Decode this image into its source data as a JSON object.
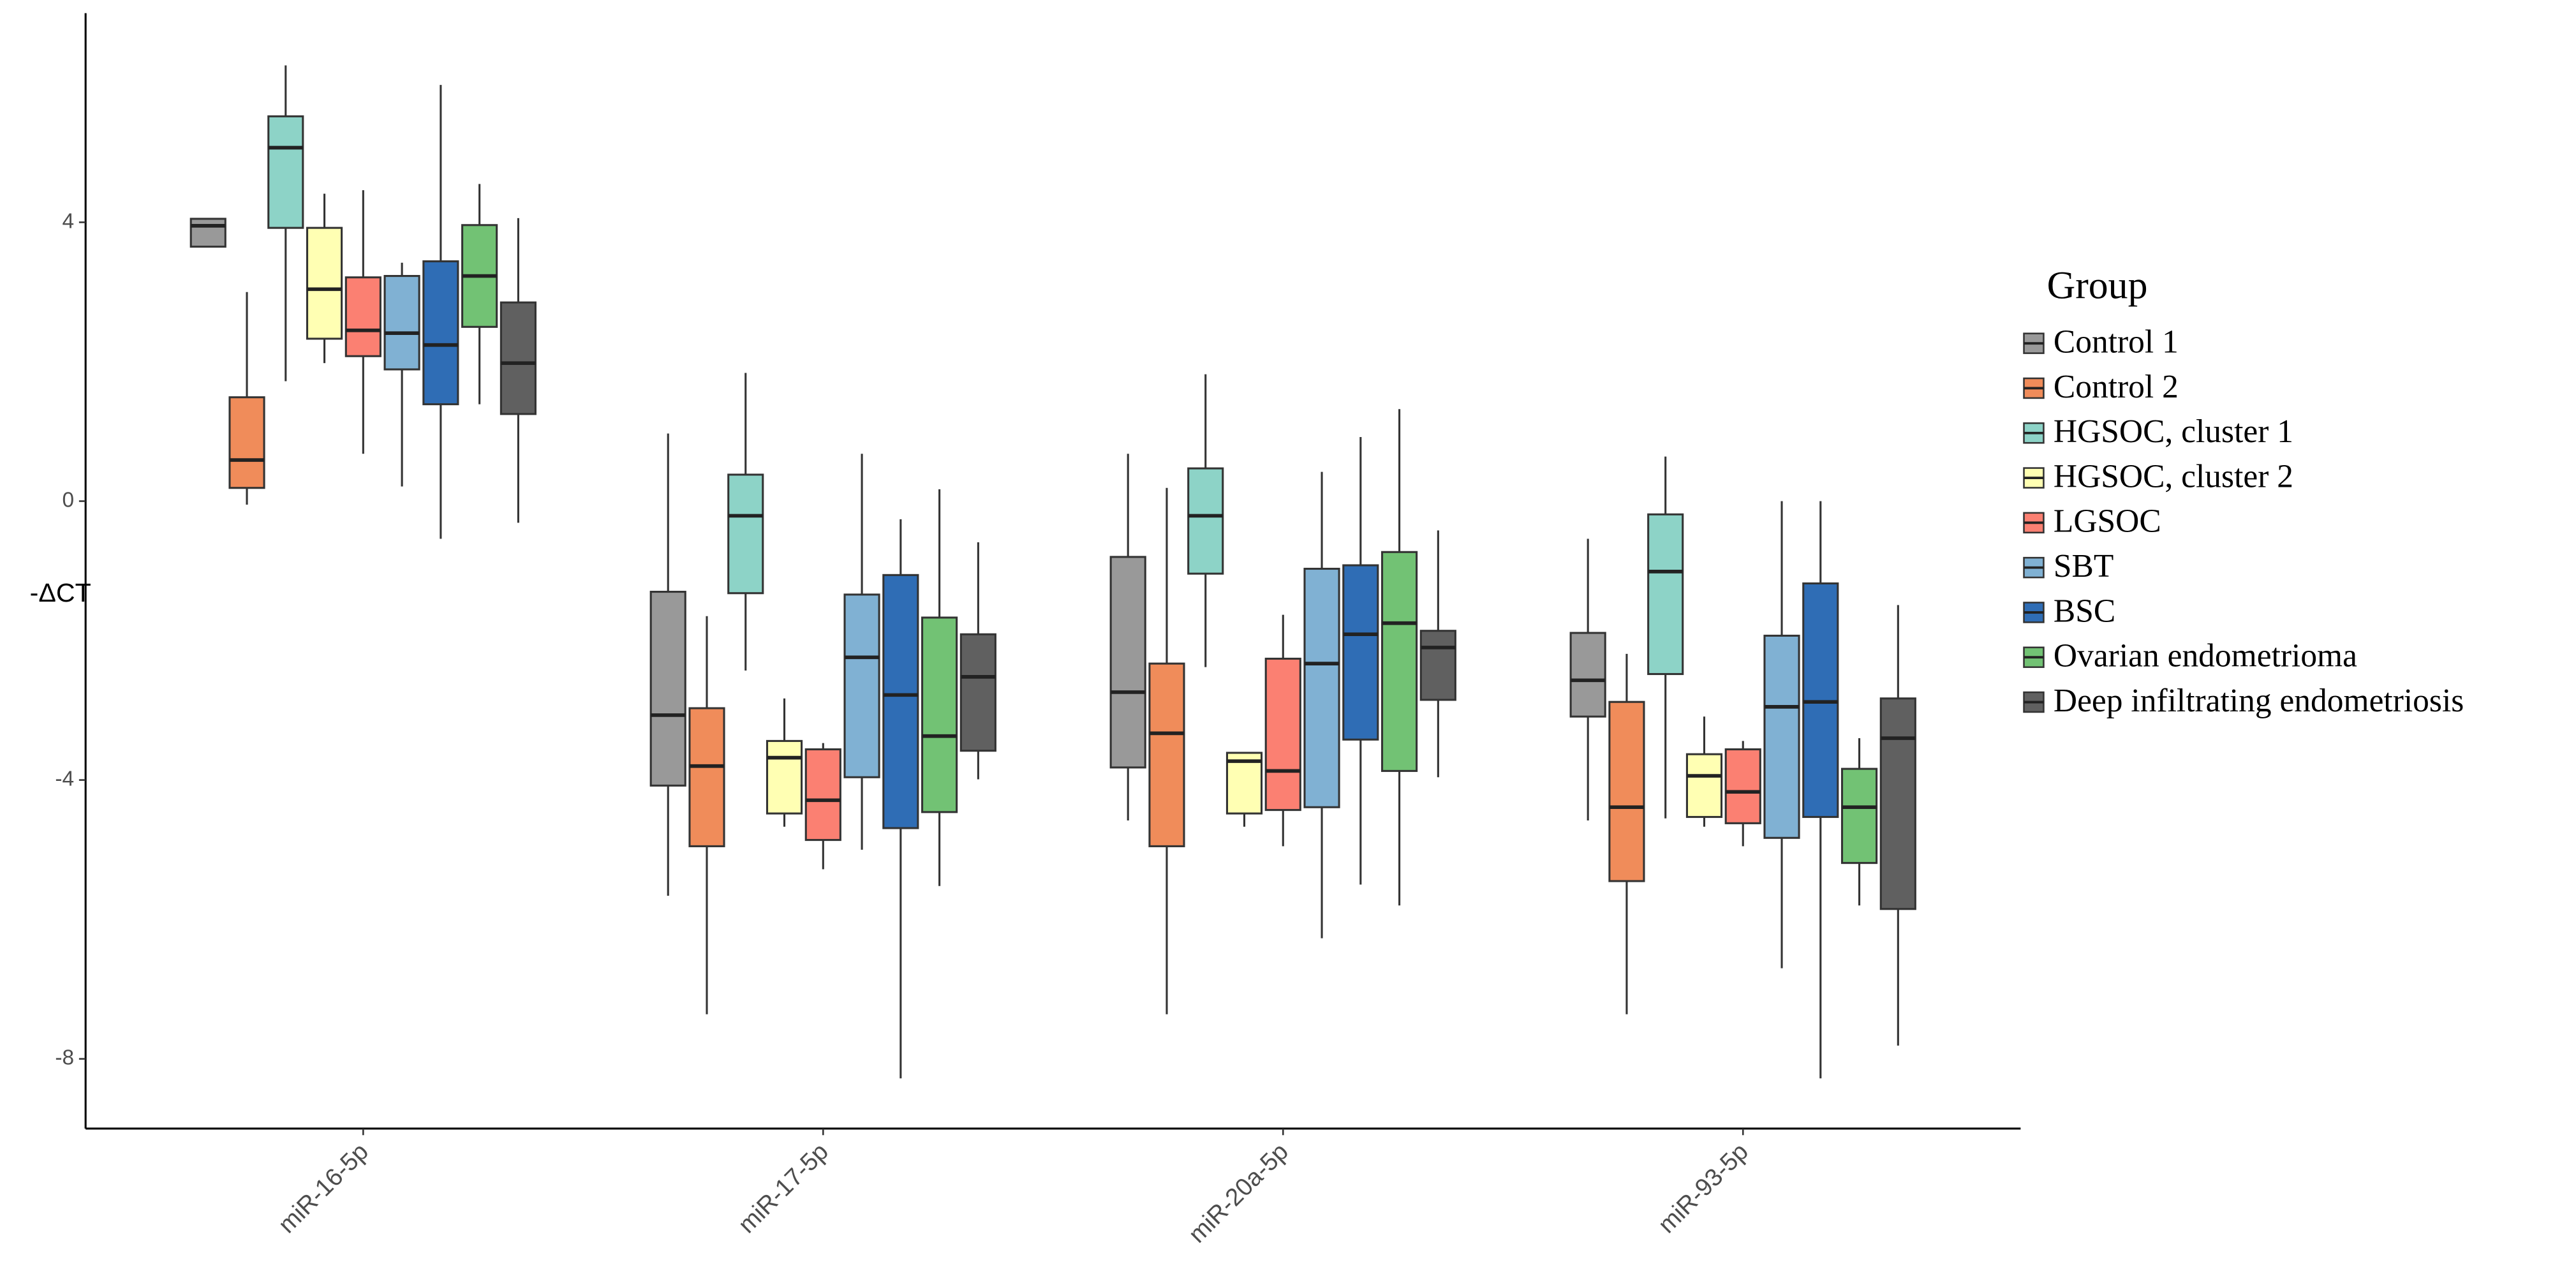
{
  "chart_data": {
    "type": "box",
    "y_label": "-ΔCT",
    "legend_title": "Group",
    "legend_position": "right",
    "categories": [
      "miR-16-5p",
      "miR-17-5p",
      "miR-20a-5p",
      "miR-93-5p"
    ],
    "ylim": [
      -9,
      7
    ],
    "yticks": [
      -8,
      -4,
      0,
      4
    ],
    "series": [
      {
        "name": "Control 1",
        "color": "#999999",
        "low": [
          3.65,
          -5.66,
          -4.58,
          -4.58
        ],
        "q1": [
          3.65,
          -4.08,
          -3.82,
          -3.09
        ],
        "median": [
          3.95,
          -3.07,
          -2.74,
          -2.57
        ],
        "q3": [
          4.05,
          -1.3,
          -0.8,
          -1.89
        ],
        "high": [
          4.05,
          0.97,
          0.68,
          -0.54
        ]
      },
      {
        "name": "Control 2",
        "color": "#f08c5a",
        "low": [
          -0.05,
          -7.36,
          -7.36,
          -7.36
        ],
        "q1": [
          0.19,
          -4.95,
          -4.95,
          -5.45
        ],
        "median": [
          0.59,
          -3.8,
          -3.33,
          -4.39
        ],
        "q3": [
          1.49,
          -2.97,
          -2.33,
          -2.88
        ],
        "high": [
          3.0,
          -1.65,
          0.19,
          -2.19
        ]
      },
      {
        "name": "HGSOC, cluster 1",
        "color": "#8dd3c7",
        "low": [
          1.72,
          -2.43,
          -2.38,
          -4.55
        ],
        "q1": [
          3.92,
          -1.32,
          -1.04,
          -2.48
        ],
        "median": [
          5.07,
          -0.21,
          -0.21,
          -1.01
        ],
        "q3": [
          5.52,
          0.38,
          0.47,
          -0.19
        ],
        "high": [
          6.25,
          1.84,
          1.82,
          0.64
        ]
      },
      {
        "name": "HGSOC, cluster 2",
        "color": "#ffffb3",
        "low": [
          1.98,
          -4.67,
          -4.67,
          -4.67
        ],
        "q1": [
          2.33,
          -4.48,
          -4.48,
          -4.53
        ],
        "median": [
          3.04,
          -3.68,
          -3.73,
          -3.94
        ],
        "q3": [
          3.92,
          -3.44,
          -3.61,
          -3.63
        ],
        "high": [
          4.41,
          -2.83,
          -3.61,
          -3.09
        ]
      },
      {
        "name": "LGSOC",
        "color": "#fb8072",
        "low": [
          0.68,
          -5.28,
          -4.95,
          -4.95
        ],
        "q1": [
          2.08,
          -4.86,
          -4.43,
          -4.62
        ],
        "median": [
          2.45,
          -4.29,
          -3.87,
          -4.17
        ],
        "q3": [
          3.21,
          -3.56,
          -2.26,
          -3.56
        ],
        "high": [
          4.46,
          -3.47,
          -1.63,
          -3.44
        ]
      },
      {
        "name": "SBT",
        "color": "#80b1d3",
        "low": [
          0.21,
          -5.0,
          -6.27,
          -6.7
        ],
        "q1": [
          1.89,
          -3.96,
          -4.39,
          -4.83
        ],
        "median": [
          2.41,
          -2.24,
          -2.33,
          -2.95
        ],
        "q3": [
          3.23,
          -1.34,
          -0.97,
          -1.93
        ],
        "high": [
          3.42,
          0.68,
          0.42,
          0.0
        ]
      },
      {
        "name": "BSC",
        "color": "#2f6db5",
        "low": [
          -0.54,
          -8.28,
          -5.5,
          -8.28
        ],
        "q1": [
          1.39,
          -4.69,
          -3.42,
          -4.53
        ],
        "median": [
          2.24,
          -2.78,
          -1.91,
          -2.88
        ],
        "q3": [
          3.44,
          -1.06,
          -0.92,
          -1.18
        ],
        "high": [
          5.97,
          -0.26,
          0.92,
          0.0
        ]
      },
      {
        "name": "Ovarian endometrioma",
        "color": "#72c274",
        "low": [
          1.39,
          -5.52,
          -5.8,
          -5.8
        ],
        "q1": [
          2.5,
          -4.46,
          -3.87,
          -5.19
        ],
        "median": [
          3.23,
          -3.37,
          -1.75,
          -4.39
        ],
        "q3": [
          3.96,
          -1.67,
          -0.73,
          -3.84
        ],
        "high": [
          4.55,
          0.17,
          1.32,
          -3.4
        ]
      },
      {
        "name": "Deep infiltrating endometriosis",
        "color": "#606060",
        "low": [
          -0.31,
          -3.99,
          -3.96,
          -7.81
        ],
        "q1": [
          1.25,
          -3.58,
          -2.85,
          -5.85
        ],
        "median": [
          1.98,
          -2.52,
          -2.1,
          -3.4
        ],
        "q3": [
          2.85,
          -1.91,
          -1.86,
          -2.83
        ],
        "high": [
          4.06,
          -0.59,
          -0.42,
          -1.49
        ]
      }
    ]
  }
}
